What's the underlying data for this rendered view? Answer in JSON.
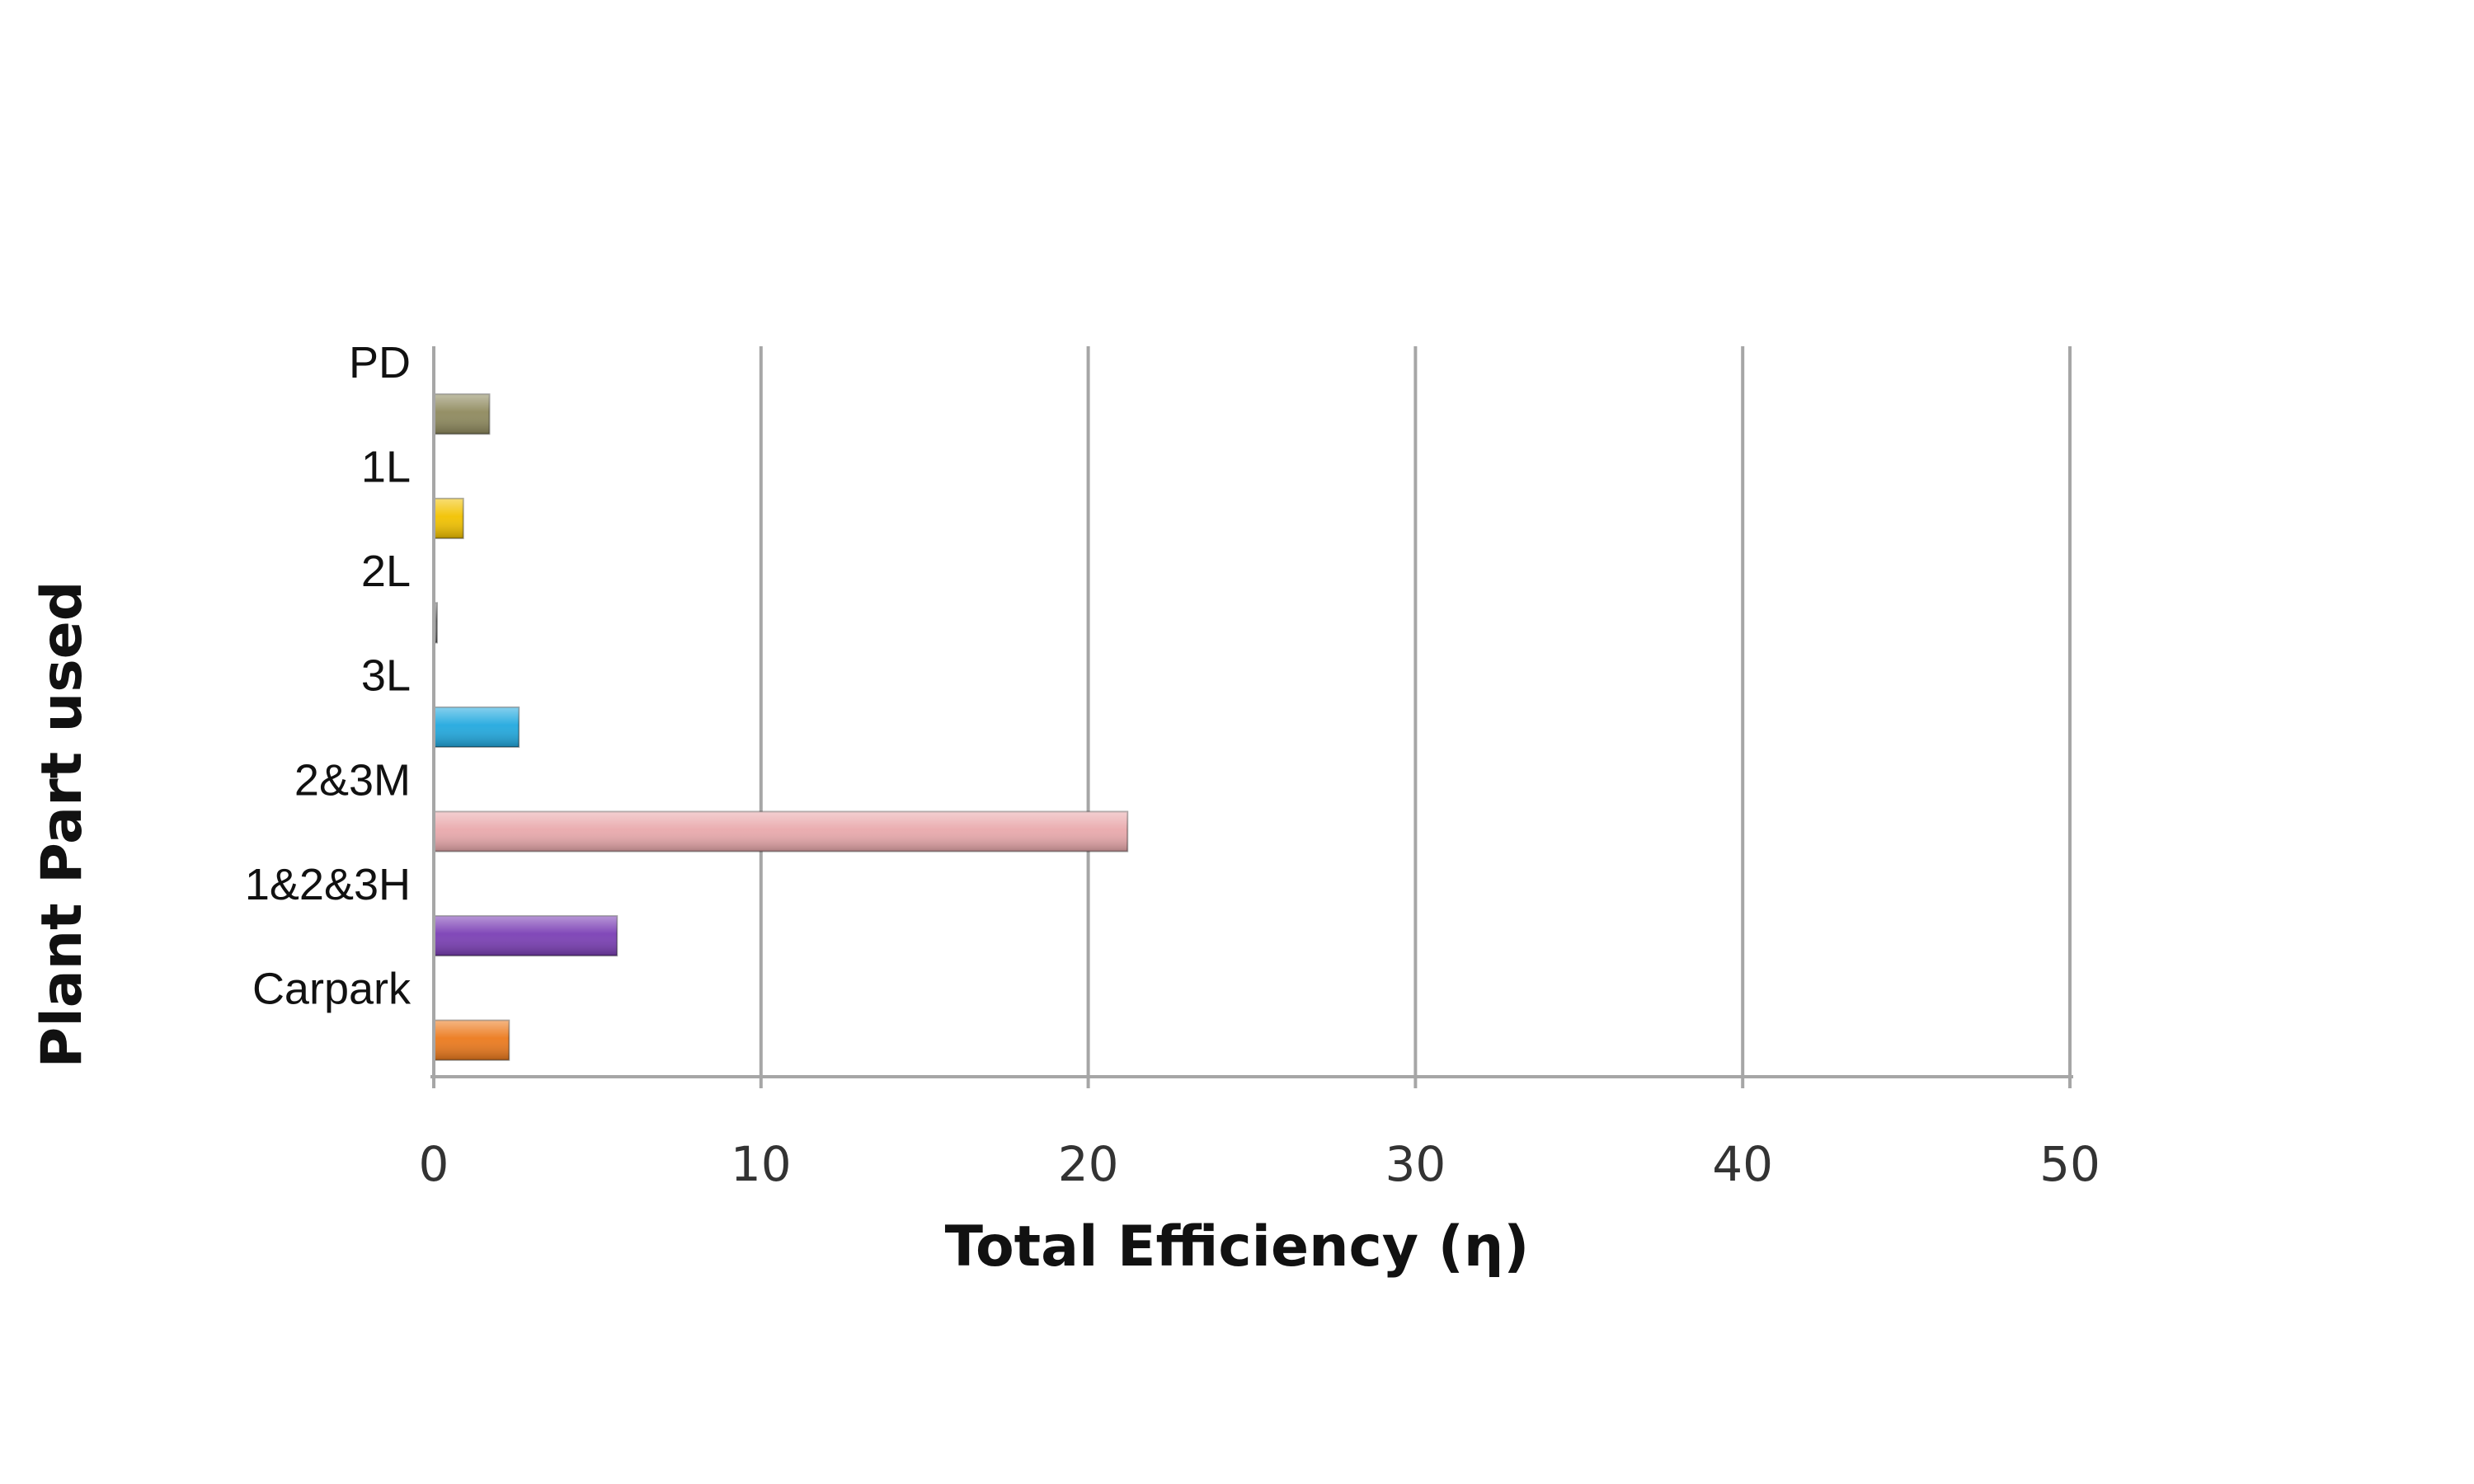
{
  "chart_data": {
    "type": "bar",
    "orientation": "horizontal",
    "xlabel": "Total Efficiency (η)",
    "ylabel": "Plant Part used",
    "xlim": [
      0,
      50
    ],
    "x_ticks": [
      "0",
      "10",
      "20",
      "30",
      "40",
      "50"
    ],
    "grid": "vertical",
    "legend": "none",
    "categories": [
      "PD",
      "1L",
      "2L",
      "3L",
      "2&3M",
      "1&2&3H",
      "Carpark"
    ],
    "values": [
      1.7,
      0.9,
      0.1,
      2.6,
      21.2,
      5.6,
      2.3
    ],
    "colors": [
      "#8F8A5E",
      "#F2C200",
      "#777777",
      "#22A9DF",
      "#E9A9AC",
      "#7B3FB5",
      "#EC7A1D"
    ]
  }
}
